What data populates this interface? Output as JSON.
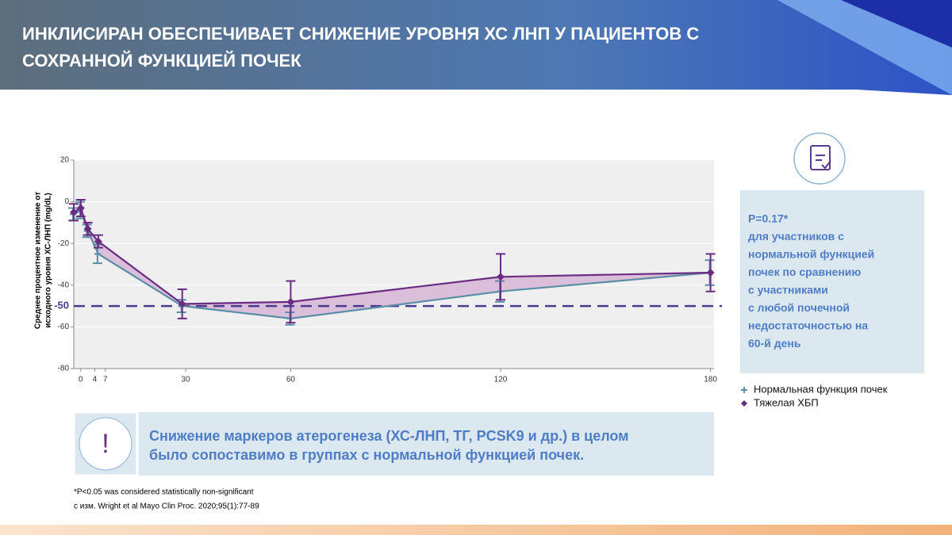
{
  "header": {
    "title_lines": [
      "ИНКЛИСИРАН ОБЕСПЕЧИВАЕТ СНИЖЕНИЕ УРОВНЯ ХС ЛНП У ПАЦИЕНТОВ С",
      "СОХРАННОЙ ФУНКЦИЕЙ ПОЧЕК"
    ]
  },
  "chart_data": {
    "type": "line",
    "y_label_lines": [
      "Среднее процентное изменение от",
      "исходного уровня ХС-ЛНП (mg/dL)"
    ],
    "x": [
      -2,
      0,
      2,
      5,
      29,
      60,
      120,
      180
    ],
    "series": [
      {
        "name": "Нормальная функция почек",
        "color": "#5b8fa6",
        "marker": "plus",
        "values": [
          -6,
          -4,
          -14,
          -25,
          -50,
          -56,
          -43,
          -34
        ],
        "errors": [
          3,
          4,
          3,
          4.5,
          3,
          3,
          5,
          6
        ]
      },
      {
        "name": "Тяжелая ХБП",
        "color": "#6b2d84",
        "marker": "diamond",
        "values": [
          -5,
          -3,
          -13,
          -19,
          -49,
          -48,
          -36,
          -34
        ],
        "errors": [
          4,
          4,
          3,
          3,
          7,
          10,
          11,
          9
        ]
      }
    ],
    "fill_between": true,
    "xlim": [
      -2,
      181
    ],
    "xticks": [
      0,
      4,
      7,
      30,
      60,
      120,
      180
    ],
    "ylim": [
      -80,
      20
    ],
    "yticks": [
      20,
      0,
      -20,
      -40,
      -60,
      -80
    ],
    "reference_line": {
      "value": -50,
      "label": "-50",
      "color": "#4b3b8f"
    }
  },
  "info": {
    "lines": [
      "P=0.17*",
      "для участников с",
      "нормальной функцией",
      "почек по сравнению",
      "с участниками",
      "с любой почечной",
      "недостаточностью на",
      "60-й день"
    ]
  },
  "callout": {
    "icon": "!",
    "lines": [
      "Снижение маркеров атерогенеза (ХС-ЛНП, ТГ, PCSK9 и др.) в целом",
      "было сопоставимо в группах с нормальной функцией почек."
    ]
  },
  "footnotes": [
    "*P<0.05 was considered statistically non-significant",
    "с изм. Wright et al Mayo Clin Proc. 2020;95(1):77-89"
  ]
}
